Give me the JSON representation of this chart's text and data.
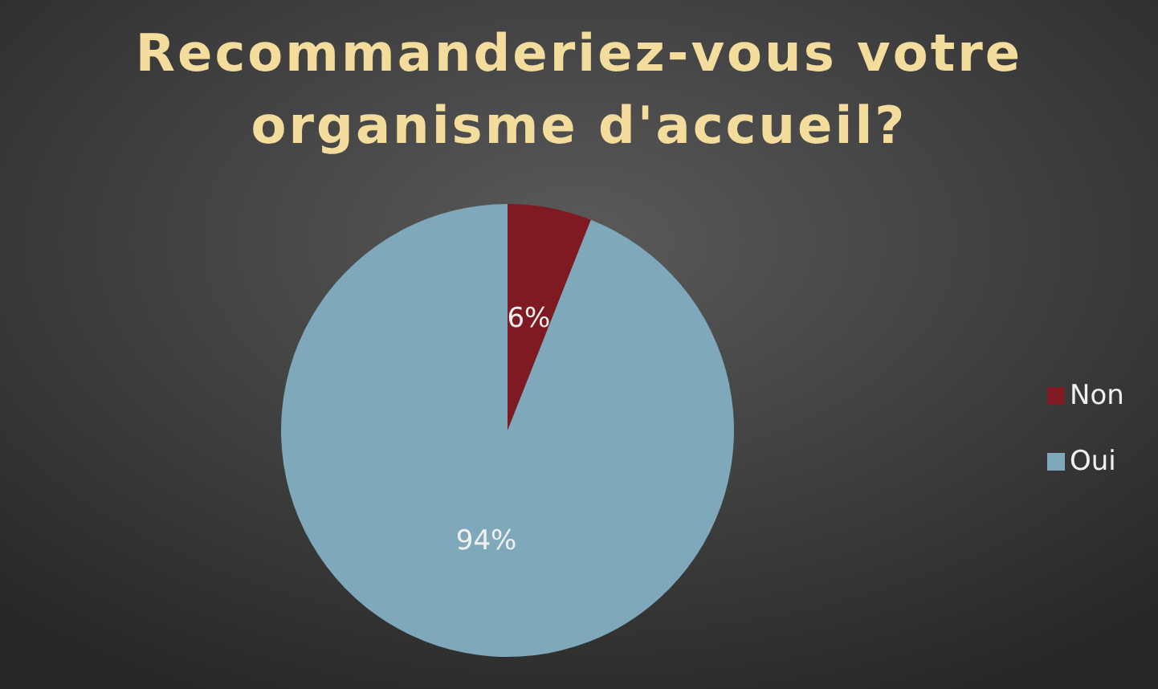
{
  "chart_data": {
    "type": "pie",
    "title": "Recommanderiez-vous votre organisme d'accueil?",
    "categories": [
      "Non",
      "Oui"
    ],
    "values": [
      6,
      94
    ],
    "colors": [
      "#7f1a22",
      "#7fa8ba"
    ],
    "value_labels": [
      "6%",
      "94%"
    ],
    "legend": "right"
  }
}
